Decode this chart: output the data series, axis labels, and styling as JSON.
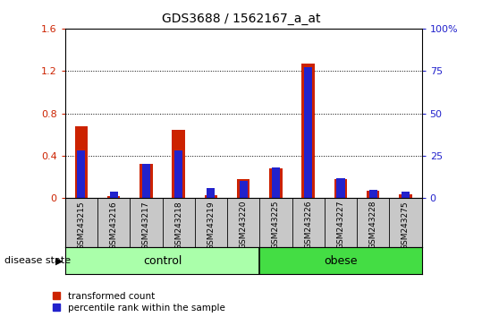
{
  "title": "GDS3688 / 1562167_a_at",
  "samples": [
    "GSM243215",
    "GSM243216",
    "GSM243217",
    "GSM243218",
    "GSM243219",
    "GSM243220",
    "GSM243225",
    "GSM243226",
    "GSM243227",
    "GSM243228",
    "GSM243275"
  ],
  "transformed_count": [
    0.68,
    0.02,
    0.32,
    0.64,
    0.03,
    0.18,
    0.28,
    1.27,
    0.18,
    0.07,
    0.04
  ],
  "percentile_rank_pct": [
    28,
    4,
    20,
    28,
    6,
    10,
    18,
    77,
    12,
    5,
    4
  ],
  "groups": [
    {
      "label": "control",
      "start": 0,
      "end": 6,
      "color": "#AAFFAA"
    },
    {
      "label": "obese",
      "start": 6,
      "end": 11,
      "color": "#44DD44"
    }
  ],
  "red_color": "#CC2200",
  "blue_color": "#2222CC",
  "ylim_left": [
    0,
    1.6
  ],
  "ylim_right": [
    0,
    100
  ],
  "yticks_left": [
    0,
    0.4,
    0.8,
    1.2,
    1.6
  ],
  "yticks_right": [
    0,
    25,
    50,
    75,
    100
  ],
  "ytick_labels_left": [
    "0",
    "0.4",
    "0.8",
    "1.2",
    "1.6"
  ],
  "ytick_labels_right": [
    "0",
    "25",
    "50",
    "75",
    "100%"
  ],
  "bg_color": "#C8C8C8",
  "disease_state_label": "disease state",
  "legend_items": [
    {
      "label": "transformed count",
      "color": "#CC2200"
    },
    {
      "label": "percentile rank within the sample",
      "color": "#2222CC"
    }
  ],
  "bar_width": 0.4,
  "blue_bar_width": 0.25
}
